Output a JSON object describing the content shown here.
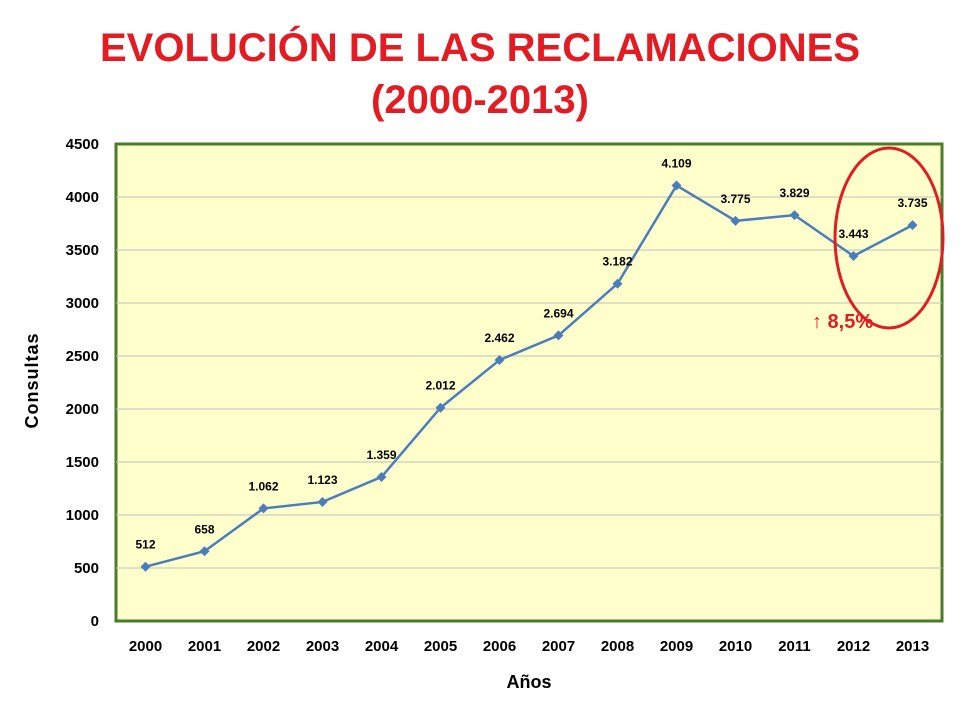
{
  "title_line1": "EVOLUCIÓN DE LAS RECLAMACIONES",
  "title_line2": "(2000-2013)",
  "annotation": "↑ 8,5%",
  "colors": {
    "title": "#e31b23",
    "plot_bg": "#ffffcc",
    "plot_border": "#4a7c2a",
    "series": "#4a7ebb",
    "circle": "#e31b23",
    "grid": "#bfbfbf"
  },
  "chart_data": {
    "type": "line",
    "title": "EVOLUCIÓN DE LAS RECLAMACIONES (2000-2013)",
    "xlabel": "Años",
    "ylabel": "Consultas",
    "categories": [
      "2000",
      "2001",
      "2002",
      "2003",
      "2004",
      "2005",
      "2006",
      "2007",
      "2008",
      "2009",
      "2010",
      "2011",
      "2012",
      "2013"
    ],
    "values": [
      512,
      658,
      1062,
      1123,
      1359,
      2012,
      2462,
      2694,
      3182,
      4109,
      3775,
      3829,
      3443,
      3735
    ],
    "data_labels": [
      "512",
      "658",
      "1.062",
      "1.123",
      "1.359",
      "2.012",
      "2.462",
      "2.694",
      "3.182",
      "4.109",
      "3.775",
      "3.829",
      "3.443",
      "3.735"
    ],
    "yticks": [
      0,
      500,
      1000,
      1500,
      2000,
      2500,
      3000,
      3500,
      4000,
      4500
    ],
    "ylim": [
      0,
      4500
    ],
    "grid": true,
    "legend": "none"
  }
}
